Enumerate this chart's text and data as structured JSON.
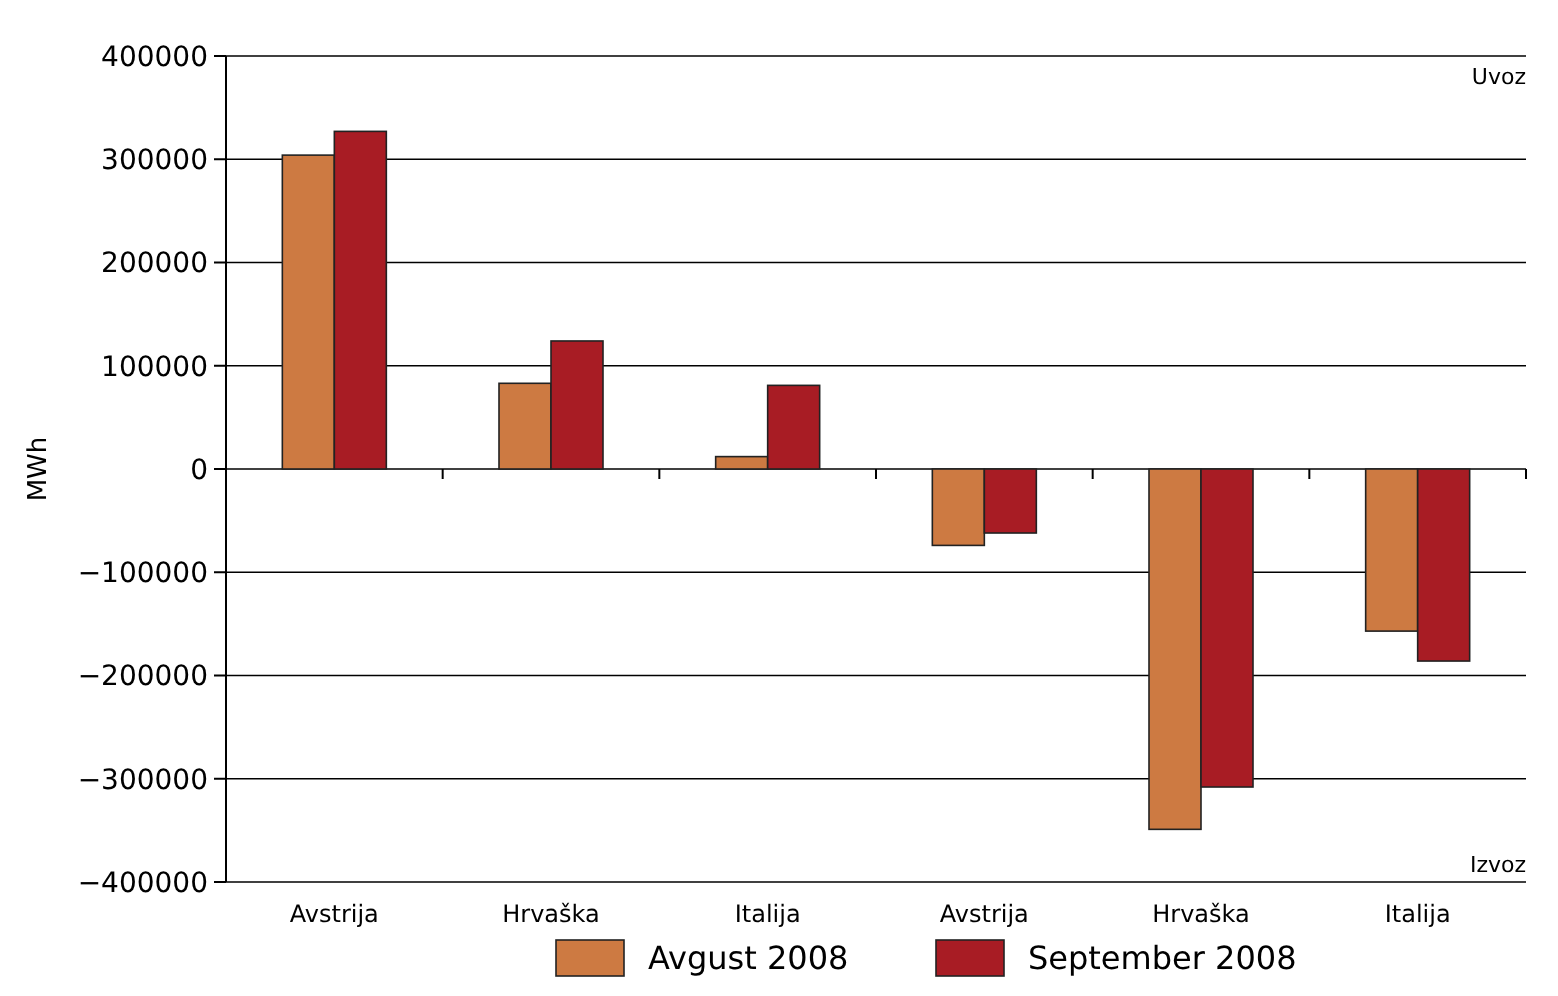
{
  "chart_data": {
    "type": "bar",
    "ylabel": "MWh",
    "categories": [
      "Avstrija",
      "Hrvaška",
      "Italija",
      "Avstrija",
      "Hrvaška",
      "Italija"
    ],
    "series": [
      {
        "name": "Avgust 2008",
        "color": "#cd7a42",
        "values": [
          304000,
          83000,
          12000,
          -74000,
          -349000,
          -157000
        ]
      },
      {
        "name": "September 2008",
        "color": "#a81c24",
        "values": [
          327000,
          124000,
          81000,
          -62000,
          -308000,
          -186000
        ]
      }
    ],
    "ylim": [
      -400000,
      400000
    ],
    "yticks": [
      -400000,
      -300000,
      -200000,
      -100000,
      0,
      100000,
      200000,
      300000,
      400000
    ],
    "grid": "y",
    "legend": "bottom",
    "annotations": [
      "Uvoz",
      "Izvoz"
    ]
  }
}
